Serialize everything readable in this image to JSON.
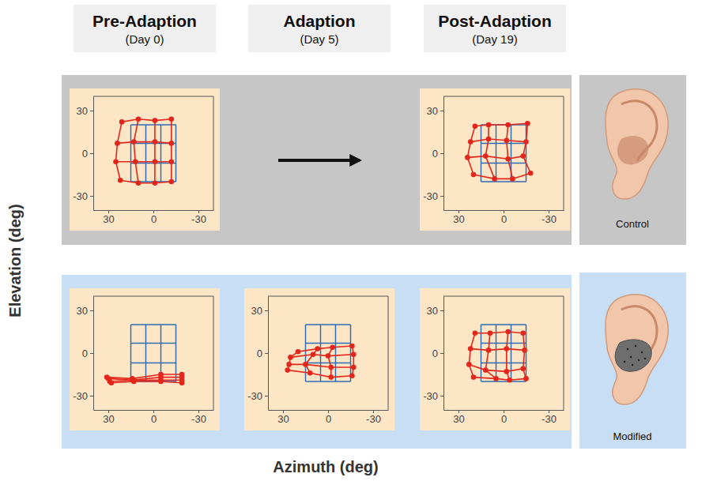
{
  "columns": [
    {
      "title": "Pre-Adaption",
      "subtitle": "(Day 0)"
    },
    {
      "title": "Adaption",
      "subtitle": "(Day 5)"
    },
    {
      "title": "Post-Adaption",
      "subtitle": "(Day 19)"
    }
  ],
  "ear_labels": [
    "Control",
    "Modified"
  ],
  "axis_labels": {
    "x": "Azimuth (deg)",
    "y": "Elevation (deg)"
  },
  "chart_data": [
    {
      "type": "scatter",
      "xlim": [
        40,
        -40
      ],
      "ylim": [
        -40,
        40
      ],
      "xticks": [
        30,
        0,
        -30
      ],
      "yticks": [
        -30,
        0,
        30
      ],
      "series": [
        {
          "type": "mesh",
          "color": "#2f6cb3",
          "marker": "none",
          "line_style": "solid",
          "x": [
            15,
            5,
            -5,
            -15,
            15,
            5,
            -5,
            -15,
            15,
            5,
            -5,
            -15,
            15,
            5,
            -5,
            -15
          ],
          "values": [
            20,
            20,
            20,
            20,
            7,
            7,
            7,
            7,
            -7,
            -7,
            -7,
            -7,
            -20,
            -20,
            -20,
            -20
          ]
        },
        {
          "type": "mesh",
          "color": "#e3261c",
          "marker": "circle",
          "line_style": "solid",
          "x": [
            21,
            10,
            -1,
            -12,
            24,
            13,
            -1,
            -12,
            25,
            12,
            -1,
            -12,
            22,
            10,
            -1,
            -12
          ],
          "values": [
            22,
            24,
            23,
            24,
            7,
            8,
            8,
            7,
            -6,
            -6,
            -6,
            -6,
            -19,
            -21,
            -21,
            -20
          ]
        }
      ]
    },
    {
      "type": "scatter",
      "xlim": [
        40,
        -40
      ],
      "ylim": [
        -40,
        40
      ],
      "xticks": [
        30,
        0,
        -30
      ],
      "yticks": [
        -30,
        0,
        30
      ],
      "series": [
        {
          "type": "mesh",
          "color": "#2f6cb3",
          "marker": "none",
          "line_style": "solid",
          "x": [
            15,
            5,
            -5,
            -15,
            15,
            5,
            -5,
            -15,
            15,
            5,
            -5,
            -15,
            15,
            5,
            -5,
            -15
          ],
          "values": [
            20,
            20,
            20,
            20,
            7,
            7,
            7,
            7,
            -7,
            -7,
            -7,
            -7,
            -20,
            -20,
            -20,
            -20
          ]
        },
        {
          "type": "mesh",
          "color": "#e3261c",
          "marker": "circle",
          "line_style": "solid",
          "x": [
            19,
            10,
            -3,
            -16,
            22,
            10,
            -2,
            -15,
            24,
            12,
            -3,
            -13,
            20,
            6,
            -6,
            -18
          ],
          "values": [
            19,
            20,
            20,
            21,
            8,
            10,
            9,
            8,
            -3,
            -2,
            -4,
            -2,
            -15,
            -18,
            -18,
            -14
          ]
        }
      ]
    },
    {
      "type": "scatter",
      "xlim": [
        40,
        -40
      ],
      "ylim": [
        -40,
        40
      ],
      "xticks": [
        30,
        0,
        -30
      ],
      "yticks": [
        -30,
        0,
        30
      ],
      "series": [
        {
          "type": "mesh",
          "color": "#2f6cb3",
          "marker": "none",
          "line_style": "solid",
          "x": [
            15,
            5,
            -5,
            -15,
            15,
            5,
            -5,
            -15,
            15,
            5,
            -5,
            -15,
            15,
            5,
            -5,
            -15
          ],
          "values": [
            20,
            20,
            20,
            20,
            7,
            7,
            7,
            7,
            -7,
            -7,
            -7,
            -7,
            -20,
            -20,
            -20,
            -20
          ]
        },
        {
          "type": "mesh",
          "color": "#e3261c",
          "marker": "circle",
          "line_style": "solid",
          "x": [
            31,
            14,
            -5,
            -19,
            30,
            14,
            -5,
            -19,
            29,
            13,
            -5,
            -19,
            28,
            13,
            -5,
            -19
          ],
          "values": [
            -17,
            -18,
            -15,
            -15,
            -18,
            -19,
            -17,
            -17,
            -20,
            -19,
            -19,
            -19,
            -21,
            -20,
            -20,
            -21
          ]
        }
      ]
    },
    {
      "type": "scatter",
      "xlim": [
        40,
        -40
      ],
      "ylim": [
        -40,
        40
      ],
      "xticks": [
        30,
        0,
        -30
      ],
      "yticks": [
        -30,
        0,
        30
      ],
      "series": [
        {
          "type": "mesh",
          "color": "#2f6cb3",
          "marker": "none",
          "line_style": "solid",
          "x": [
            15,
            5,
            -5,
            -15,
            15,
            5,
            -5,
            -15,
            15,
            5,
            -5,
            -15,
            15,
            5,
            -5,
            -15
          ],
          "values": [
            20,
            20,
            20,
            20,
            7,
            7,
            7,
            7,
            -7,
            -7,
            -7,
            -7,
            -20,
            -20,
            -20,
            -20
          ]
        },
        {
          "type": "mesh",
          "color": "#e3261c",
          "marker": "circle",
          "line_style": "solid",
          "x": [
            20,
            7,
            -3,
            -16,
            25,
            10,
            0,
            -17,
            26,
            15,
            -2,
            -17,
            27,
            12,
            -2,
            -16
          ],
          "values": [
            1,
            3,
            4,
            5,
            -3,
            -1,
            -2,
            -1,
            -8,
            -8,
            -10,
            -10,
            -12,
            -14,
            -17,
            -16
          ]
        }
      ]
    },
    {
      "type": "scatter",
      "xlim": [
        40,
        -40
      ],
      "ylim": [
        -40,
        40
      ],
      "xticks": [
        30,
        0,
        -30
      ],
      "yticks": [
        -30,
        0,
        30
      ],
      "series": [
        {
          "type": "mesh",
          "color": "#2f6cb3",
          "marker": "none",
          "line_style": "solid",
          "x": [
            15,
            5,
            -5,
            -15,
            15,
            5,
            -5,
            -15,
            15,
            5,
            -5,
            -15,
            15,
            5,
            -5,
            -15
          ],
          "values": [
            20,
            20,
            20,
            20,
            7,
            7,
            7,
            7,
            -7,
            -7,
            -7,
            -7,
            -20,
            -20,
            -20,
            -20
          ]
        },
        {
          "type": "mesh",
          "color": "#e3261c",
          "marker": "circle",
          "line_style": "solid",
          "x": [
            19,
            9,
            -3,
            -13,
            22,
            10,
            -2,
            -14,
            23,
            12,
            -2,
            -13,
            20,
            5,
            -4,
            -15
          ],
          "values": [
            14,
            14,
            15,
            14,
            3,
            2,
            3,
            2,
            -8,
            -12,
            -13,
            -11,
            -17,
            -18,
            -19,
            -18
          ]
        }
      ]
    }
  ]
}
